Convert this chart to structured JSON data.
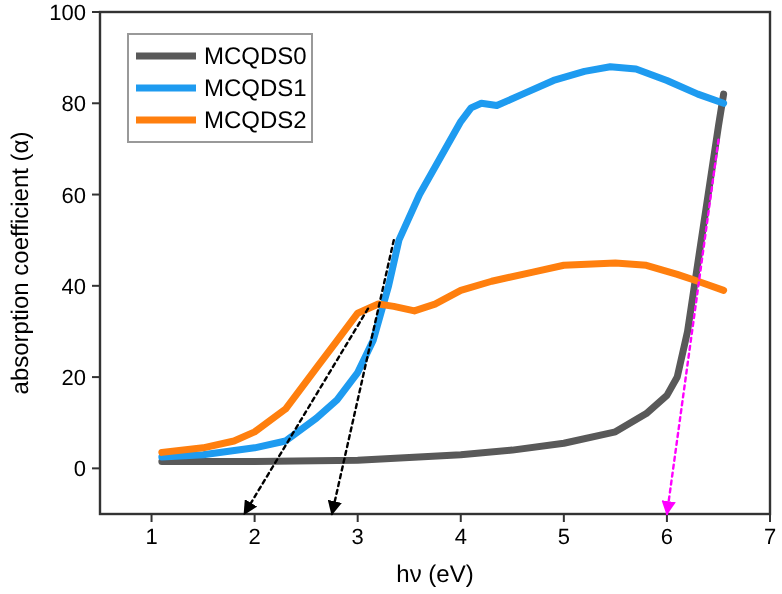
{
  "chart_data": {
    "type": "line",
    "xlabel": "hν (eV)",
    "ylabel": "absorption coefficient (α)",
    "xlim": [
      0.5,
      7
    ],
    "ylim": [
      -10,
      100
    ],
    "xticks": [
      1,
      2,
      3,
      4,
      5,
      6,
      7
    ],
    "yticks": [
      0,
      20,
      40,
      60,
      80,
      100
    ],
    "legend": "top left",
    "grid": false,
    "series": [
      {
        "name": "MCQDS0",
        "color": "#595959",
        "x": [
          1.1,
          2,
          3,
          4,
          4.5,
          5,
          5.5,
          5.8,
          6.0,
          6.1,
          6.2,
          6.3,
          6.4,
          6.5,
          6.55
        ],
        "values": [
          1.5,
          1.5,
          1.8,
          3,
          4,
          5.5,
          8,
          12,
          16,
          20,
          30,
          45,
          60,
          75,
          82
        ]
      },
      {
        "name": "MCQDS1",
        "color": "#1e9bf0",
        "x": [
          1.1,
          1.5,
          2,
          2.3,
          2.6,
          2.8,
          3.0,
          3.15,
          3.3,
          3.4,
          3.6,
          3.8,
          4.0,
          4.1,
          4.2,
          4.35,
          4.6,
          4.9,
          5.2,
          5.45,
          5.7,
          6.0,
          6.3,
          6.55
        ],
        "values": [
          2.5,
          3,
          4.5,
          6,
          11,
          15,
          21,
          28,
          40,
          50,
          60,
          68,
          76,
          79,
          80,
          79.5,
          82,
          85,
          87,
          88,
          87.5,
          85,
          82,
          80
        ]
      },
      {
        "name": "MCQDS2",
        "color": "#ff7f0e",
        "x": [
          1.1,
          1.5,
          1.8,
          2.0,
          2.3,
          2.6,
          2.8,
          3.0,
          3.2,
          3.35,
          3.55,
          3.75,
          4.0,
          4.3,
          4.7,
          5.0,
          5.5,
          5.8,
          6.1,
          6.3,
          6.55
        ],
        "values": [
          3.5,
          4.5,
          6,
          8,
          13,
          22,
          28,
          34,
          36,
          35.5,
          34.5,
          36,
          39,
          41,
          43,
          44.5,
          45,
          44.5,
          42.5,
          41,
          39
        ]
      },
      {
        "type": "line",
        "line_style": "dotted",
        "color": "#000000",
        "x": [
          3.1,
          1.9
        ],
        "values": [
          35,
          -10
        ]
      },
      {
        "type": "line",
        "line_style": "dotted",
        "color": "#000000",
        "x": [
          3.35,
          2.75
        ],
        "values": [
          50,
          -10
        ]
      },
      {
        "type": "line",
        "line_style": "dotted",
        "color": "#ff00ff",
        "x": [
          6.5,
          6.0
        ],
        "values": [
          72,
          -10
        ]
      }
    ]
  }
}
